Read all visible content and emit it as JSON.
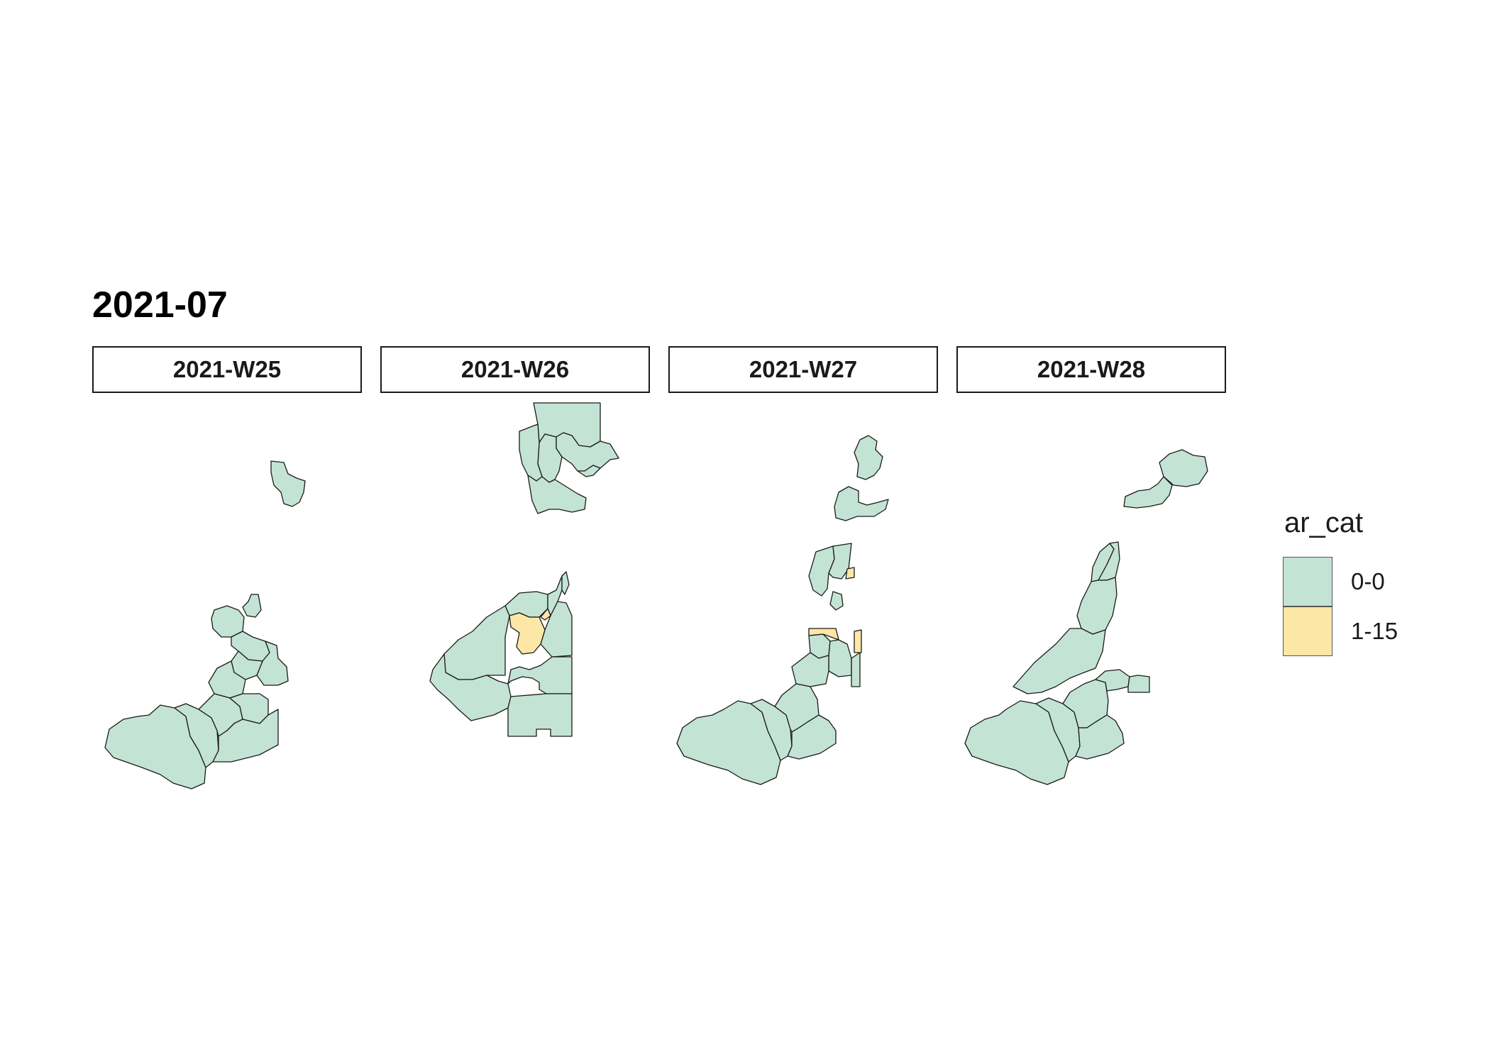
{
  "title": "2021-07",
  "colors": {
    "zero": "#c3e3d5",
    "low": "#fde7a6",
    "border": "#1a1a1a"
  },
  "panels": [
    {
      "label": "2021-W25"
    },
    {
      "label": "2021-W26"
    },
    {
      "label": "2021-W27"
    },
    {
      "label": "2021-W28"
    }
  ],
  "legend": {
    "title": "ar_cat",
    "items": [
      {
        "label": "0-0",
        "color": "#c3e3d5"
      },
      {
        "label": "1-15",
        "color": "#fde7a6"
      }
    ]
  }
}
